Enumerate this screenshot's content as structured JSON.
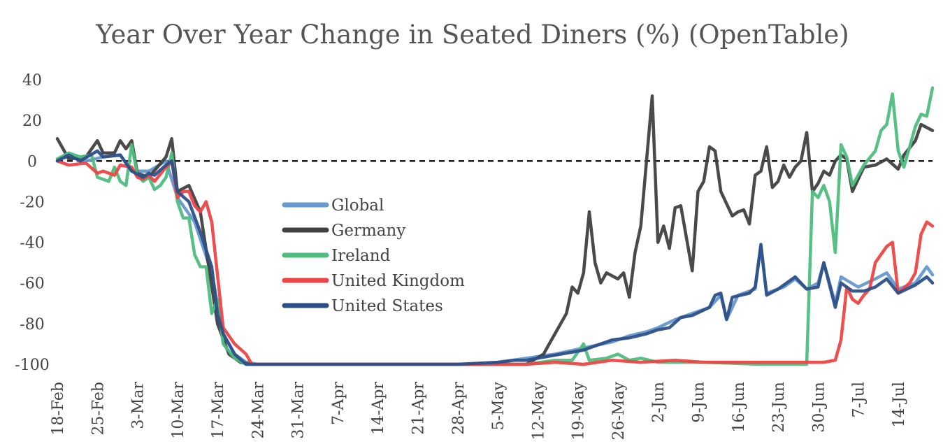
{
  "chart_data": {
    "type": "line",
    "title": "Year Over Year Change in Seated Diners (%) (OpenTable)",
    "xlabel": "",
    "ylabel": "",
    "ylim": [
      -100,
      40
    ],
    "yticks": [
      40,
      20,
      0,
      -20,
      -40,
      -60,
      -80,
      -100
    ],
    "x_start": "18-Feb",
    "x_end": "20-Jul",
    "xticks": [
      "18-Feb",
      "25-Feb",
      "3-Mar",
      "10-Mar",
      "17-Mar",
      "24-Mar",
      "31-Mar",
      "7-Apr",
      "14-Apr",
      "21-Apr",
      "28-Apr",
      "5-May",
      "12-May",
      "19-May",
      "26-May",
      "2-Jun",
      "9-Jun",
      "16-Jun",
      "23-Jun",
      "30-Jun",
      "7-Jul",
      "14-Jul"
    ],
    "zero_line": "dashed",
    "legend_position": "center-left",
    "grid": false,
    "series": [
      {
        "name": "Global",
        "color": "#6699cc",
        "points": [
          [
            "18-Feb",
            1
          ],
          [
            "20-Feb",
            2
          ],
          [
            "23-Feb",
            0
          ],
          [
            "26-Feb",
            2
          ],
          [
            "29-Feb",
            3
          ],
          [
            "2-Mar",
            -5
          ],
          [
            "5-Mar",
            -5
          ],
          [
            "8-Mar",
            0
          ],
          [
            "10-Mar",
            -18
          ],
          [
            "13-Mar",
            -30
          ],
          [
            "16-Mar",
            -55
          ],
          [
            "18-Mar",
            -85
          ],
          [
            "20-Mar",
            -95
          ],
          [
            "22-Mar",
            -99
          ],
          [
            "24-Mar",
            -100
          ],
          [
            "1-May",
            -100
          ],
          [
            "5-May",
            -99
          ],
          [
            "10-May",
            -97
          ],
          [
            "15-May",
            -95
          ],
          [
            "20-May",
            -92
          ],
          [
            "25-May",
            -89
          ],
          [
            "28-May",
            -86
          ],
          [
            "31-May",
            -84
          ],
          [
            "2-Jun",
            -82
          ],
          [
            "5-Jun",
            -78
          ],
          [
            "8-Jun",
            -75
          ],
          [
            "11-Jun",
            -72
          ],
          [
            "13-Jun",
            -66
          ],
          [
            "14-Jun",
            -78
          ],
          [
            "16-Jun",
            -66
          ],
          [
            "19-Jun",
            -63
          ],
          [
            "20-Jun",
            -42
          ],
          [
            "21-Jun",
            -65
          ],
          [
            "24-Jun",
            -62
          ],
          [
            "26-Jun",
            -58
          ],
          [
            "28-Jun",
            -63
          ],
          [
            "30-Jun",
            -60
          ],
          [
            "1-Jul",
            -50
          ],
          [
            "3-Jul",
            -70
          ],
          [
            "4-Jul",
            -57
          ],
          [
            "7-Jul",
            -62
          ],
          [
            "10-Jul",
            -58
          ],
          [
            "12-Jul",
            -55
          ],
          [
            "14-Jul",
            -63
          ],
          [
            "17-Jul",
            -60
          ],
          [
            "19-Jul",
            -52
          ],
          [
            "20-Jul",
            -56
          ]
        ]
      },
      {
        "name": "Germany",
        "color": "#404040",
        "points": [
          [
            "18-Feb",
            11
          ],
          [
            "20-Feb",
            1
          ],
          [
            "23-Feb",
            2
          ],
          [
            "25-Feb",
            10
          ],
          [
            "26-Feb",
            4
          ],
          [
            "28-Feb",
            4
          ],
          [
            "29-Feb",
            10
          ],
          [
            "1-Mar",
            6
          ],
          [
            "2-Mar",
            10
          ],
          [
            "3-Mar",
            -6
          ],
          [
            "5-Mar",
            -8
          ],
          [
            "8-Mar",
            2
          ],
          [
            "9-Mar",
            11
          ],
          [
            "10-Mar",
            -15
          ],
          [
            "12-Mar",
            -12
          ],
          [
            "14-Mar",
            -25
          ],
          [
            "17-Mar",
            -80
          ],
          [
            "19-Mar",
            -95
          ],
          [
            "21-Mar",
            -99
          ],
          [
            "23-Mar",
            -100
          ],
          [
            "10-May",
            -100
          ],
          [
            "13-May",
            -95
          ],
          [
            "14-May",
            -90
          ],
          [
            "16-May",
            -80
          ],
          [
            "17-May",
            -75
          ],
          [
            "18-May",
            -62
          ],
          [
            "19-May",
            -65
          ],
          [
            "20-May",
            -55
          ],
          [
            "21-May",
            -25
          ],
          [
            "22-May",
            -50
          ],
          [
            "23-May",
            -60
          ],
          [
            "24-May",
            -55
          ],
          [
            "26-May",
            -58
          ],
          [
            "27-May",
            -55
          ],
          [
            "28-May",
            -67
          ],
          [
            "29-May",
            -45
          ],
          [
            "30-May",
            -32
          ],
          [
            "1-Jun",
            32
          ],
          [
            "2-Jun",
            -40
          ],
          [
            "3-Jun",
            -32
          ],
          [
            "4-Jun",
            -43
          ],
          [
            "5-Jun",
            -23
          ],
          [
            "6-Jun",
            -22
          ],
          [
            "8-Jun",
            -54
          ],
          [
            "9-Jun",
            -15
          ],
          [
            "10-Jun",
            -10
          ],
          [
            "11-Jun",
            7
          ],
          [
            "12-Jun",
            5
          ],
          [
            "13-Jun",
            -15
          ],
          [
            "15-Jun",
            -27
          ],
          [
            "16-Jun",
            -25
          ],
          [
            "17-Jun",
            -24
          ],
          [
            "18-Jun",
            -31
          ],
          [
            "19-Jun",
            -7
          ],
          [
            "20-Jun",
            -5
          ],
          [
            "21-Jun",
            7
          ],
          [
            "22-Jun",
            -13
          ],
          [
            "23-Jun",
            -10
          ],
          [
            "24-Jun",
            -2
          ],
          [
            "25-Jun",
            -8
          ],
          [
            "26-Jun",
            -3
          ],
          [
            "27-Jun",
            0
          ],
          [
            "28-Jun",
            14
          ],
          [
            "29-Jun",
            -15
          ],
          [
            "30-Jun",
            -11
          ],
          [
            "1-Jul",
            -5
          ],
          [
            "2-Jul",
            -7
          ],
          [
            "3-Jul",
            0
          ],
          [
            "4-Jul",
            3
          ],
          [
            "5-Jul",
            1
          ],
          [
            "6-Jul",
            -15
          ],
          [
            "8-Jul",
            -3
          ],
          [
            "10-Jul",
            -2
          ],
          [
            "12-Jul",
            1
          ],
          [
            "14-Jul",
            -4
          ],
          [
            "15-Jul",
            3
          ],
          [
            "17-Jul",
            10
          ],
          [
            "18-Jul",
            18
          ],
          [
            "20-Jul",
            15
          ]
        ]
      },
      {
        "name": "Ireland",
        "color": "#4dbd7e",
        "points": [
          [
            "18-Feb",
            1
          ],
          [
            "20-Feb",
            4
          ],
          [
            "22-Feb",
            2
          ],
          [
            "24-Feb",
            3
          ],
          [
            "25-Feb",
            -8
          ],
          [
            "27-Feb",
            -10
          ],
          [
            "28-Feb",
            -3
          ],
          [
            "29-Feb",
            -10
          ],
          [
            "1-Mar",
            -12
          ],
          [
            "2-Mar",
            8
          ],
          [
            "3-Mar",
            -7
          ],
          [
            "4-Mar",
            -10
          ],
          [
            "5-Mar",
            -8
          ],
          [
            "6-Mar",
            -14
          ],
          [
            "7-Mar",
            -12
          ],
          [
            "8-Mar",
            -8
          ],
          [
            "9-Mar",
            4
          ],
          [
            "10-Mar",
            -20
          ],
          [
            "11-Mar",
            -28
          ],
          [
            "12-Mar",
            -28
          ],
          [
            "13-Mar",
            -46
          ],
          [
            "14-Mar",
            -52
          ],
          [
            "15-Mar",
            -52
          ],
          [
            "16-Mar",
            -75
          ],
          [
            "17-Mar",
            -68
          ],
          [
            "18-Mar",
            -90
          ],
          [
            "20-Mar",
            -97
          ],
          [
            "22-Mar",
            -100
          ],
          [
            "10-May",
            -100
          ],
          [
            "15-May",
            -98
          ],
          [
            "18-May",
            -98
          ],
          [
            "20-May",
            -90
          ],
          [
            "21-May",
            -98
          ],
          [
            "24-May",
            -97
          ],
          [
            "26-May",
            -95
          ],
          [
            "28-May",
            -98
          ],
          [
            "30-May",
            -97
          ],
          [
            "2-Jun",
            -99
          ],
          [
            "10-Jun",
            -99
          ],
          [
            "20-Jun",
            -100
          ],
          [
            "27-Jun",
            -100
          ],
          [
            "28-Jun",
            -100
          ],
          [
            "29-Jun",
            -15
          ],
          [
            "30-Jun",
            -18
          ],
          [
            "1-Jul",
            -12
          ],
          [
            "2-Jul",
            -20
          ],
          [
            "3-Jul",
            -45
          ],
          [
            "4-Jul",
            8
          ],
          [
            "5-Jul",
            2
          ],
          [
            "6-Jul",
            -12
          ],
          [
            "8-Jul",
            -2
          ],
          [
            "10-Jul",
            5
          ],
          [
            "11-Jul",
            15
          ],
          [
            "12-Jul",
            18
          ],
          [
            "13-Jul",
            33
          ],
          [
            "14-Jul",
            5
          ],
          [
            "15-Jul",
            -3
          ],
          [
            "17-Jul",
            17
          ],
          [
            "18-Jul",
            23
          ],
          [
            "19-Jul",
            22
          ],
          [
            "20-Jul",
            36
          ]
        ]
      },
      {
        "name": "United Kingdom",
        "color": "#ee4444",
        "points": [
          [
            "18-Feb",
            0
          ],
          [
            "20-Feb",
            -2
          ],
          [
            "23-Feb",
            -1
          ],
          [
            "25-Feb",
            -6
          ],
          [
            "26-Feb",
            -5
          ],
          [
            "28-Feb",
            -7
          ],
          [
            "29-Feb",
            -2
          ],
          [
            "2-Mar",
            -3
          ],
          [
            "3-Mar",
            -8
          ],
          [
            "4-Mar",
            -9
          ],
          [
            "5-Mar",
            -7
          ],
          [
            "6-Mar",
            -10
          ],
          [
            "8-Mar",
            -3
          ],
          [
            "9-Mar",
            0
          ],
          [
            "10-Mar",
            -18
          ],
          [
            "11-Mar",
            -15
          ],
          [
            "12-Mar",
            -15
          ],
          [
            "13-Mar",
            -22
          ],
          [
            "14-Mar",
            -25
          ],
          [
            "15-Mar",
            -20
          ],
          [
            "16-Mar",
            -30
          ],
          [
            "18-Mar",
            -82
          ],
          [
            "20-Mar",
            -90
          ],
          [
            "22-Mar",
            -95
          ],
          [
            "23-Mar",
            -100
          ],
          [
            "10-May",
            -100
          ],
          [
            "15-May",
            -99
          ],
          [
            "20-May",
            -100
          ],
          [
            "25-May",
            -98
          ],
          [
            "30-May",
            -99
          ],
          [
            "5-Jun",
            -98
          ],
          [
            "10-Jun",
            -99
          ],
          [
            "15-Jun",
            -99
          ],
          [
            "20-Jun",
            -99
          ],
          [
            "25-Jun",
            -99
          ],
          [
            "1-Jul",
            -99
          ],
          [
            "3-Jul",
            -98
          ],
          [
            "4-Jul",
            -88
          ],
          [
            "5-Jul",
            -62
          ],
          [
            "6-Jul",
            -68
          ],
          [
            "7-Jul",
            -70
          ],
          [
            "8-Jul",
            -66
          ],
          [
            "9-Jul",
            -63
          ],
          [
            "10-Jul",
            -50
          ],
          [
            "12-Jul",
            -42
          ],
          [
            "13-Jul",
            -40
          ],
          [
            "14-Jul",
            -65
          ],
          [
            "16-Jul",
            -60
          ],
          [
            "17-Jul",
            -55
          ],
          [
            "18-Jul",
            -36
          ],
          [
            "19-Jul",
            -30
          ],
          [
            "20-Jul",
            -32
          ]
        ]
      },
      {
        "name": "United States",
        "color": "#2d4f8a",
        "points": [
          [
            "18-Feb",
            0
          ],
          [
            "20-Feb",
            3
          ],
          [
            "22-Feb",
            0
          ],
          [
            "25-Feb",
            5
          ],
          [
            "26-Feb",
            2
          ],
          [
            "29-Feb",
            3
          ],
          [
            "2-Mar",
            -5
          ],
          [
            "4-Mar",
            -8
          ],
          [
            "5-Mar",
            -6
          ],
          [
            "6-Mar",
            -7
          ],
          [
            "8-Mar",
            -2
          ],
          [
            "9-Mar",
            0
          ],
          [
            "10-Mar",
            -15
          ],
          [
            "12-Mar",
            -20
          ],
          [
            "14-Mar",
            -35
          ],
          [
            "16-Mar",
            -52
          ],
          [
            "17-Mar",
            -75
          ],
          [
            "18-Mar",
            -85
          ],
          [
            "20-Mar",
            -95
          ],
          [
            "22-Mar",
            -100
          ],
          [
            "28-Apr",
            -100
          ],
          [
            "5-May",
            -99
          ],
          [
            "8-May",
            -98
          ],
          [
            "10-May",
            -98
          ],
          [
            "14-May",
            -96
          ],
          [
            "18-May",
            -94
          ],
          [
            "20-May",
            -93
          ],
          [
            "22-May",
            -91
          ],
          [
            "25-May",
            -88
          ],
          [
            "28-May",
            -87
          ],
          [
            "31-May",
            -85
          ],
          [
            "2-Jun",
            -83
          ],
          [
            "4-Jun",
            -82
          ],
          [
            "6-Jun",
            -77
          ],
          [
            "8-Jun",
            -76
          ],
          [
            "11-Jun",
            -72
          ],
          [
            "12-Jun",
            -66
          ],
          [
            "13-Jun",
            -65
          ],
          [
            "14-Jun",
            -78
          ],
          [
            "15-Jun",
            -67
          ],
          [
            "18-Jun",
            -65
          ],
          [
            "19-Jun",
            -62
          ],
          [
            "20-Jun",
            -41
          ],
          [
            "21-Jun",
            -66
          ],
          [
            "23-Jun",
            -63
          ],
          [
            "26-Jun",
            -57
          ],
          [
            "28-Jun",
            -63
          ],
          [
            "30-Jun",
            -62
          ],
          [
            "1-Jul",
            -50
          ],
          [
            "3-Jul",
            -72
          ],
          [
            "4-Jul",
            -60
          ],
          [
            "6-Jul",
            -64
          ],
          [
            "8-Jul",
            -64
          ],
          [
            "10-Jul",
            -62
          ],
          [
            "12-Jul",
            -58
          ],
          [
            "14-Jul",
            -65
          ],
          [
            "17-Jul",
            -61
          ],
          [
            "19-Jul",
            -57
          ],
          [
            "20-Jul",
            -60
          ]
        ]
      }
    ]
  }
}
